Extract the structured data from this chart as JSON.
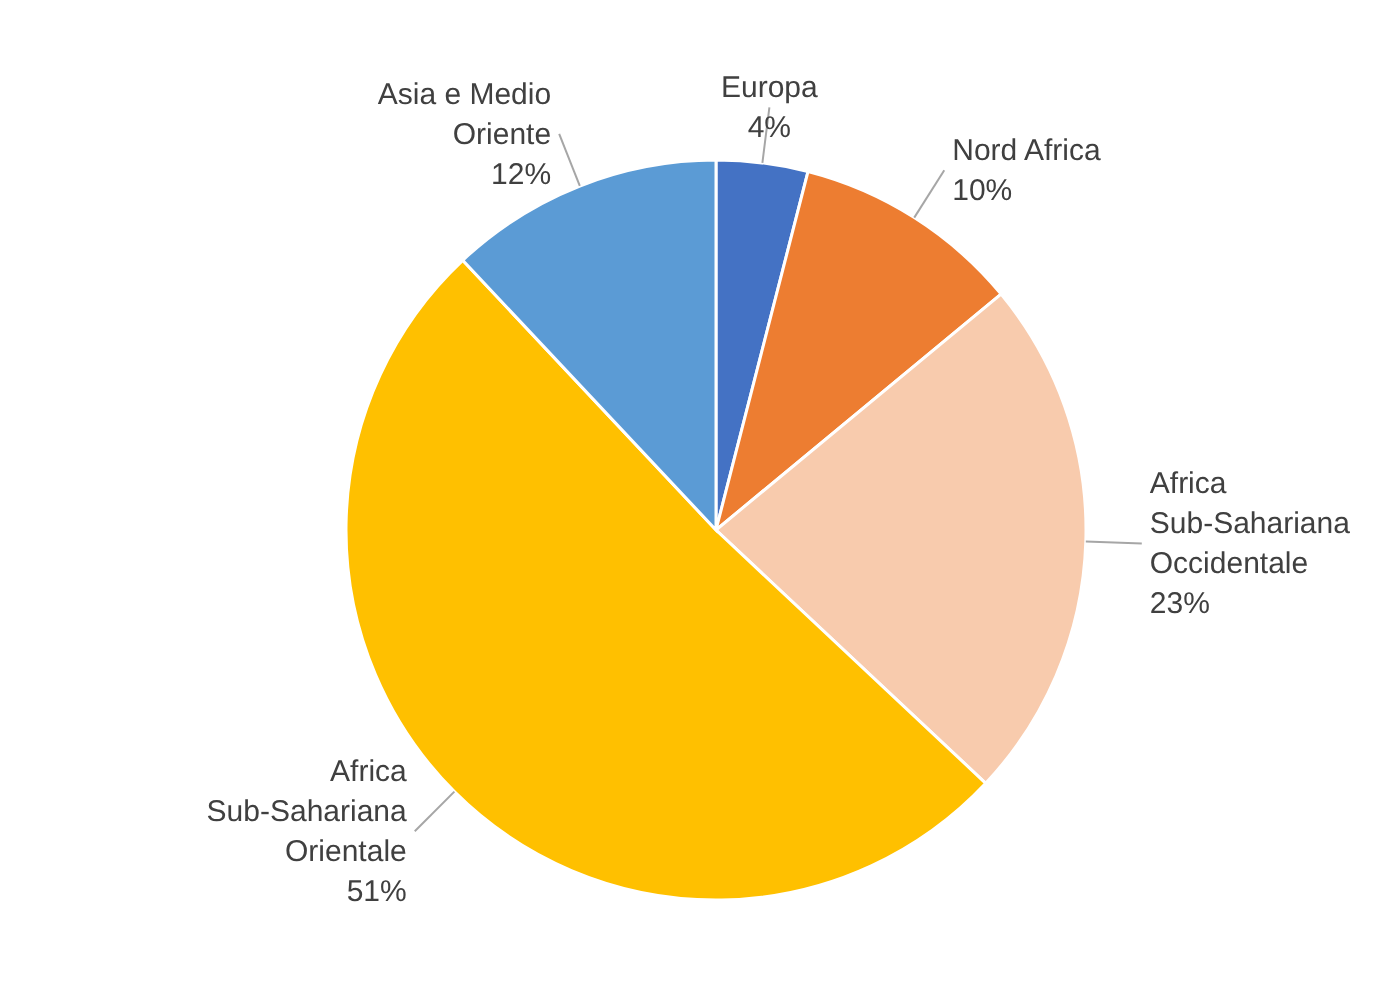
{
  "chart_data": {
    "type": "pie",
    "categories": [
      "Europa",
      "Nord Africa",
      "Africa Sub-Sahariana Occidentale",
      "Africa Sub-Sahariana Orientale",
      "Asia e Medio Oriente"
    ],
    "values": [
      4,
      10,
      23,
      51,
      12
    ],
    "colors": [
      "#4472c4",
      "#ed7d31",
      "#f8cbad",
      "#ffc000",
      "#5b9bd5"
    ],
    "value_labels": [
      "4%",
      "10%",
      "23%",
      "51%",
      "12%"
    ]
  }
}
